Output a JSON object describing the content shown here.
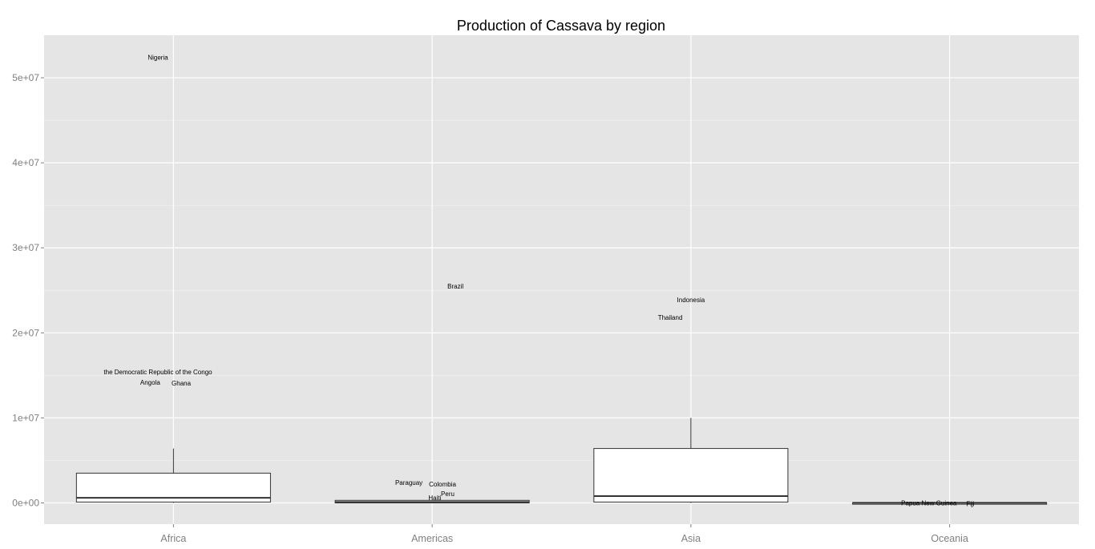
{
  "chart_data": {
    "type": "boxplot",
    "title": "Production of Cassava by region",
    "xlabel": "",
    "ylabel": "",
    "ylim": [
      -2500000,
      55000000
    ],
    "y_ticks": [
      0,
      10000000,
      20000000,
      30000000,
      40000000,
      50000000
    ],
    "y_tick_labels": [
      "0e+00",
      "1e+07",
      "2e+07",
      "3e+07",
      "4e+07",
      "5e+07"
    ],
    "categories": [
      "Africa",
      "Americas",
      "Asia",
      "Oceania"
    ],
    "boxes": [
      {
        "category": "Africa",
        "lower_whisker": 0,
        "q1": 100000,
        "median": 600000,
        "q3": 3500000,
        "upper_whisker": 6400000
      },
      {
        "category": "Americas",
        "lower_whisker": 0,
        "q1": 0,
        "median": 100000,
        "q3": 300000,
        "upper_whisker": 300000
      },
      {
        "category": "Asia",
        "lower_whisker": 0,
        "q1": 100000,
        "median": 800000,
        "q3": 6400000,
        "upper_whisker": 10000000
      },
      {
        "category": "Oceania",
        "lower_whisker": 0,
        "q1": 0,
        "median": 10000,
        "q3": 30000,
        "upper_whisker": 30000
      }
    ],
    "annotations": [
      {
        "category": "Africa",
        "label": "Nigeria",
        "x_offset": -0.06,
        "y": 52400000
      },
      {
        "category": "Africa",
        "label": "the Democratic Republic of the Congo",
        "x_offset": -0.06,
        "y": 15400000
      },
      {
        "category": "Africa",
        "label": "Angola",
        "x_offset": -0.09,
        "y": 14200000
      },
      {
        "category": "Africa",
        "label": "Ghana",
        "x_offset": 0.03,
        "y": 14100000
      },
      {
        "category": "Americas",
        "label": "Brazil",
        "x_offset": 0.09,
        "y": 25500000
      },
      {
        "category": "Americas",
        "label": "Paraguay",
        "x_offset": -0.09,
        "y": 2400000
      },
      {
        "category": "Americas",
        "label": "Colombia",
        "x_offset": 0.04,
        "y": 2200000
      },
      {
        "category": "Americas",
        "label": "Peru",
        "x_offset": 0.06,
        "y": 1100000
      },
      {
        "category": "Americas",
        "label": "Haiti",
        "x_offset": 0.01,
        "y": 600000
      },
      {
        "category": "Asia",
        "label": "Indonesia",
        "x_offset": 0.0,
        "y": 23900000
      },
      {
        "category": "Asia",
        "label": "Thailand",
        "x_offset": -0.08,
        "y": 21800000
      },
      {
        "category": "Oceania",
        "label": "Papua New Guinea",
        "x_offset": -0.08,
        "y": 0
      },
      {
        "category": "Oceania",
        "label": "Fiji",
        "x_offset": 0.08,
        "y": -100000
      }
    ],
    "grid": true,
    "legend": "none"
  }
}
